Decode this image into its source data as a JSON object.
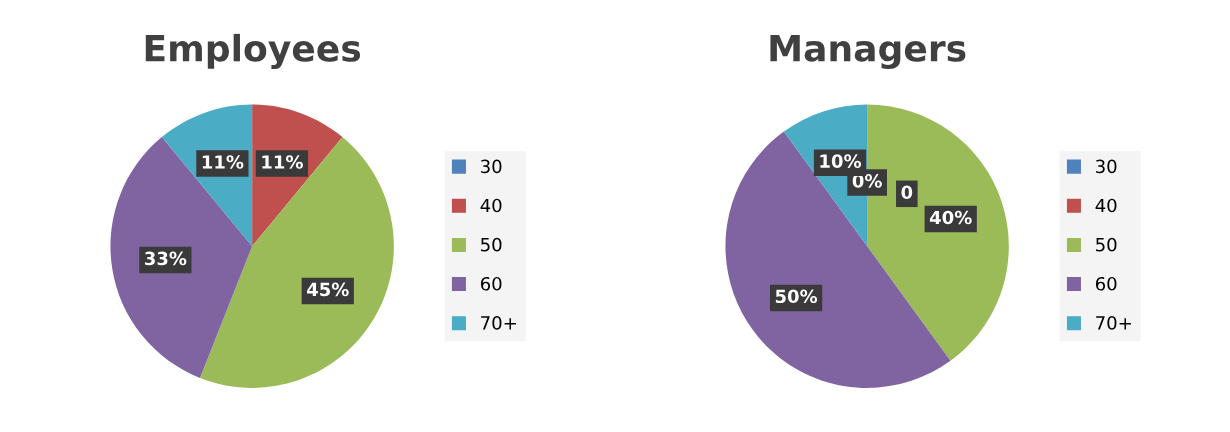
{
  "chart_data": [
    {
      "type": "pie",
      "title": "Employees",
      "categories": [
        "30",
        "40",
        "50",
        "60",
        "70+"
      ],
      "values": [
        0,
        11,
        45,
        33,
        11
      ],
      "colors": [
        "#4f81bd",
        "#c0504d",
        "#9bbb59",
        "#8064a2",
        "#4bacc6"
      ],
      "value_labels": [
        null,
        "11%",
        "45%",
        "33%",
        "11%"
      ],
      "legend": "right"
    },
    {
      "type": "pie",
      "title": "Managers",
      "categories": [
        "30",
        "40",
        "50",
        "60",
        "70+"
      ],
      "values": [
        0,
        0,
        40,
        50,
        10
      ],
      "colors": [
        "#4f81bd",
        "#c0504d",
        "#9bbb59",
        "#8064a2",
        "#4bacc6"
      ],
      "value_labels": [
        "0%",
        "0",
        "40%",
        "50%",
        "10%"
      ],
      "legend": "right"
    }
  ]
}
